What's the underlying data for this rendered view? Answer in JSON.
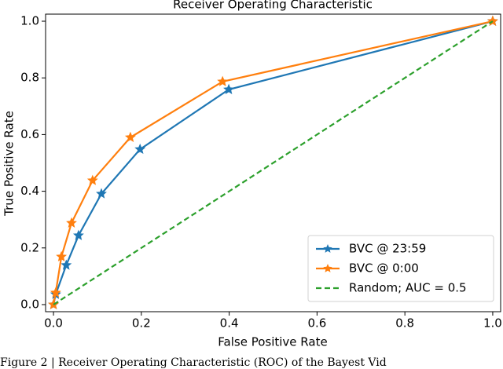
{
  "chart_data": {
    "type": "line",
    "title": "Receiver Operating Characteristic",
    "x_label": "False Positive Rate",
    "y_label": "True Positive Rate",
    "xlim": [
      -0.018,
      1.018
    ],
    "ylim": [
      -0.025,
      1.025
    ],
    "xticks": [
      {
        "value": 0,
        "label": "0.0"
      },
      0.2,
      0.4,
      0.6,
      0.8,
      {
        "value": 1,
        "label": "1.0"
      }
    ],
    "yticks": [
      {
        "value": 0,
        "label": "0.0"
      },
      0.2,
      0.4,
      0.6,
      0.8,
      {
        "value": 1,
        "label": "1.0"
      }
    ],
    "legend": "lower right",
    "series": [
      {
        "name": "BVC @ 23:59",
        "color": "#1f77b4",
        "marker": "star",
        "dash": false,
        "x": [
          0,
          0.005,
          0.029,
          0.057,
          0.109,
          0.197,
          0.399,
          1
        ],
        "values": [
          0,
          0.036,
          0.139,
          0.244,
          0.391,
          0.548,
          0.759,
          1
        ]
      },
      {
        "name": "BVC @ 0:00",
        "color": "#ff7f0e",
        "marker": "star",
        "dash": false,
        "x": [
          0,
          0.005,
          0.018,
          0.041,
          0.089,
          0.175,
          0.385,
          1
        ],
        "values": [
          0,
          0.042,
          0.169,
          0.288,
          0.438,
          0.59,
          0.787,
          1
        ]
      },
      {
        "name": "Random; AUC = 0.5",
        "color": "#2ca02c",
        "marker": "none",
        "dash": true,
        "x": [
          0,
          1
        ],
        "values": [
          0,
          1
        ]
      }
    ]
  },
  "caption": "Figure 2 | Receiver Operating Characteristic (ROC) of the Bayest Vid"
}
